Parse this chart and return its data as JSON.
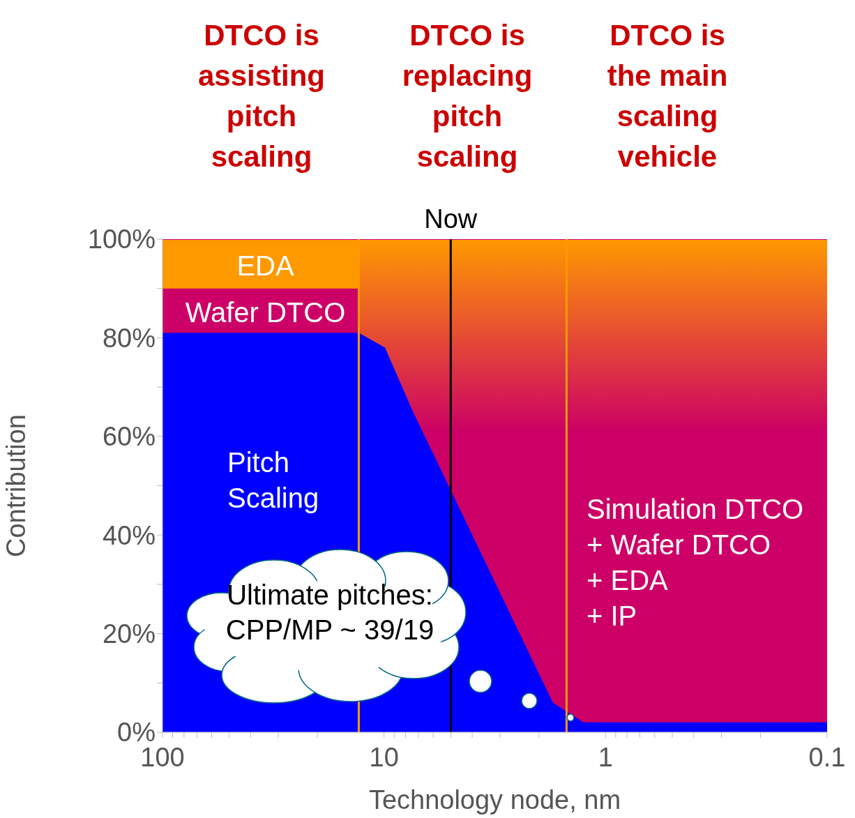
{
  "chart_data": {
    "type": "area",
    "stacked": true,
    "xlabel": "Technology node, nm",
    "ylabel": "Contribution",
    "log": "x",
    "legend": false,
    "grid": false,
    "x": [
      100,
      13,
      13,
      9.9,
      7.4,
      1.73,
      1.26,
      0.1
    ],
    "series": [
      {
        "name": "Pitch Scaling",
        "color": "#0000ff",
        "values": [
          81,
          81,
          81,
          78,
          65,
          6,
          2,
          2
        ]
      },
      {
        "name": "Wafer DTCO",
        "color": "#cc0066",
        "values": [
          9,
          9,
          null,
          null,
          null,
          null,
          null,
          null
        ]
      },
      {
        "name": "EDA",
        "color": "#ff9900",
        "values": [
          10,
          10,
          null,
          null,
          null,
          null,
          null,
          null
        ]
      },
      {
        "name": "Simulation DTCO + Wafer DTCO + EDA + IP",
        "color": "#cc0066",
        "values": [
          0,
          0,
          19,
          22,
          35,
          94,
          98,
          98
        ]
      }
    ],
    "xlim": [
      100,
      0.1
    ],
    "xticks": [
      100,
      {
        "value": 90,
        "label": null
      },
      {
        "value": 80,
        "label": null
      },
      {
        "value": 70,
        "label": null
      },
      {
        "value": 60,
        "label": null
      },
      {
        "value": 50,
        "label": null
      },
      {
        "value": 40,
        "label": null
      },
      {
        "value": 30,
        "label": null
      },
      {
        "value": 20,
        "label": null
      },
      10,
      {
        "value": 9,
        "label": null
      },
      {
        "value": 8,
        "label": null
      },
      {
        "value": 7,
        "label": null
      },
      {
        "value": 6,
        "label": null
      },
      {
        "value": 5,
        "label": null
      },
      {
        "value": 4,
        "label": null
      },
      {
        "value": 3,
        "label": null
      },
      {
        "value": 2,
        "label": null
      },
      1,
      {
        "value": 0.9,
        "label": null
      },
      {
        "value": 0.8,
        "label": null
      },
      {
        "value": 0.7,
        "label": null
      },
      {
        "value": 0.6,
        "label": null
      },
      {
        "value": 0.5,
        "label": null
      },
      {
        "value": 0.4,
        "label": null
      },
      {
        "value": 0.3,
        "label": null
      },
      {
        "value": 0.2,
        "label": null
      },
      0.1
    ],
    "ylim": [
      0,
      100
    ],
    "yticks": [
      {
        "value": 0,
        "label": "0%"
      },
      {
        "value": 10,
        "label": null
      },
      {
        "value": 20,
        "label": "20%"
      },
      {
        "value": 30,
        "label": null
      },
      {
        "value": 40,
        "label": "40%"
      },
      {
        "value": 50,
        "label": null
      },
      {
        "value": 60,
        "label": "60%"
      },
      {
        "value": 70,
        "label": null
      },
      {
        "value": 80,
        "label": "80%"
      },
      {
        "value": 90,
        "label": null
      },
      {
        "value": 100,
        "label": "100%"
      }
    ],
    "ref_lines": [
      {
        "axis": "x",
        "value": 13,
        "color": "#ff9900"
      },
      {
        "axis": "x",
        "value": 5,
        "color": "#000000",
        "label": "Now"
      },
      {
        "axis": "x",
        "value": 1.5,
        "color": "#ff9900"
      }
    ],
    "annotations": [
      "DTCO is assisting pitch scaling",
      "DTCO is replacing pitch scaling",
      "DTCO is the main scaling vehicle",
      "Ultimate pitches: CPP/MP ~ 39/19"
    ]
  }
}
